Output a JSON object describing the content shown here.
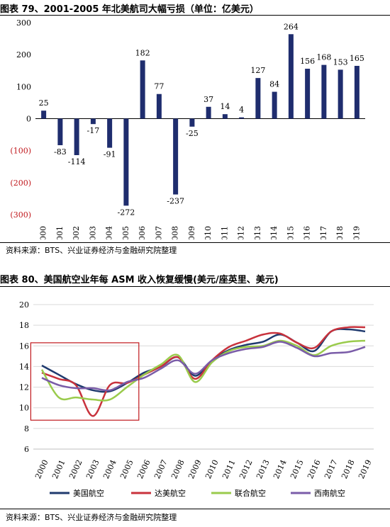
{
  "figure79": {
    "title": "图表 79、2001-2005 年北美航司大幅亏损（单位：亿美元）",
    "source": "资料来源：BTS、兴业证券经济与金融研究院整理",
    "chart_data": {
      "type": "bar",
      "categories": [
        "2000",
        "2001",
        "2002",
        "2003",
        "2004",
        "2005",
        "2006",
        "2007",
        "2008",
        "2009",
        "2010",
        "2011",
        "2012",
        "2013",
        "2014",
        "2015",
        "2016",
        "2017",
        "2018",
        "2019"
      ],
      "values": [
        25,
        -83,
        -114,
        -17,
        -91,
        -272,
        182,
        77,
        -237,
        -25,
        37,
        14,
        4,
        127,
        84,
        264,
        156,
        168,
        153,
        165
      ],
      "y_ticks": [
        300,
        200,
        100,
        0,
        -100,
        -200,
        -300
      ],
      "y_tick_labels": [
        "300",
        "200",
        "100",
        "0",
        "(100)",
        "(200)",
        "(300)"
      ],
      "ylim": [
        -300,
        300
      ],
      "bar_color": "#1f2d6e",
      "negative_tick_color": "#c0171c"
    }
  },
  "figure80": {
    "title": "图表 80、美国航空业年每 ASM 收入恢复缓慢(美元/座英里、美元)",
    "source": "资料来源：BTS、兴业证券经济与金融研究院整理",
    "chart_data": {
      "type": "line",
      "x": [
        "2000",
        "2001",
        "2002",
        "2003",
        "2004",
        "2005",
        "2006",
        "2007",
        "2008",
        "2009",
        "2010",
        "2011",
        "2012",
        "2013",
        "2014",
        "2015",
        "2016",
        "2017",
        "2018",
        "2019"
      ],
      "ylim": [
        6,
        20
      ],
      "y_ticks": [
        6,
        8,
        10,
        12,
        14,
        16,
        18,
        20
      ],
      "legend_position": "bottom",
      "highlight_box": {
        "x_from": "2000",
        "x_to": "2005",
        "y_from": 8.8,
        "y_to": 16.3,
        "color": "#c0171c"
      },
      "series": [
        {
          "name": "美国航空",
          "color": "#1f3a6e",
          "values": [
            14.1,
            13.2,
            12.3,
            11.7,
            11.6,
            12.4,
            13.4,
            14.0,
            14.9,
            13.1,
            14.6,
            15.6,
            16.1,
            16.4,
            17.1,
            16.3,
            15.5,
            17.4,
            17.6,
            17.4
          ]
        },
        {
          "name": "达美航空",
          "color": "#c8323c",
          "values": [
            13.4,
            12.8,
            12.2,
            9.2,
            12.2,
            12.4,
            13.2,
            14.0,
            14.9,
            12.8,
            14.6,
            15.9,
            16.5,
            17.1,
            17.2,
            16.3,
            15.8,
            17.4,
            17.8,
            17.8
          ]
        },
        {
          "name": "联合航空",
          "color": "#9acb4c",
          "values": [
            13.7,
            11.0,
            11.0,
            10.8,
            10.8,
            12.0,
            13.2,
            14.2,
            15.1,
            12.5,
            14.4,
            15.5,
            15.9,
            16.0,
            16.5,
            16.0,
            15.1,
            16.0,
            16.4,
            16.5
          ]
        },
        {
          "name": "西南航空",
          "color": "#7a5ca8",
          "values": [
            12.9,
            12.2,
            11.9,
            11.9,
            11.7,
            12.5,
            12.9,
            13.8,
            14.6,
            13.3,
            14.6,
            15.3,
            15.7,
            15.9,
            16.4,
            15.8,
            15.0,
            15.3,
            15.4,
            15.9
          ]
        }
      ]
    }
  }
}
